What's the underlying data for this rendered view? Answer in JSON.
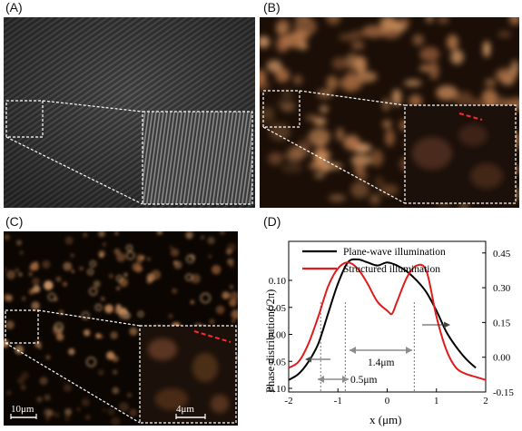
{
  "panels": {
    "a": {
      "label": "(A)"
    },
    "b": {
      "label": "(B)"
    },
    "c": {
      "label": "(C)",
      "scale_main": "10μm",
      "scale_inset": "4μm"
    },
    "d": {
      "label": "(D)"
    }
  },
  "colors": {
    "bg_gray": "#3a3a3a",
    "bg_dark": "#120a04",
    "copper": "#d08f5b",
    "plane_wave": "#000000",
    "structured": "#e11a1a",
    "guide": "#8c8c8c"
  },
  "chart_data": {
    "type": "line",
    "xlabel": "x (μm)",
    "ylabel": "Phase distribution(/2π)",
    "xlim": [
      -2,
      2
    ],
    "xticks": [
      "-2",
      "-1",
      "0",
      "1",
      "2"
    ],
    "left_ylim": [
      0.08,
      0.13
    ],
    "left_ytick_labels": [
      "0.10",
      "0.05",
      "0.00",
      "0.05",
      "0.10"
    ],
    "right_ylim": [
      -0.15,
      0.5
    ],
    "right_yticks": [
      "0.45",
      "0.30",
      "0.15",
      "0.00",
      "-0.15"
    ],
    "legend": {
      "placement": "top-right",
      "entries": [
        "Plane-wave illumination",
        "Structured illumination"
      ]
    },
    "series": [
      {
        "name": "Plane-wave illumination",
        "color": "#000000",
        "x": [
          -2.0,
          -1.8,
          -1.6,
          -1.4,
          -1.2,
          -1.0,
          -0.8,
          -0.6,
          -0.4,
          -0.2,
          0.0,
          0.2,
          0.4,
          0.6,
          0.8,
          1.0,
          1.2,
          1.4,
          1.6,
          1.8
        ],
        "y": [
          0.084,
          0.086,
          0.09,
          0.096,
          0.106,
          0.116,
          0.123,
          0.124,
          0.123,
          0.122,
          0.123,
          0.122,
          0.12,
          0.117,
          0.113,
          0.107,
          0.1,
          0.095,
          0.091,
          0.088
        ]
      },
      {
        "name": "Structured illumination",
        "color": "#e11a1a",
        "x": [
          -2.0,
          -1.8,
          -1.6,
          -1.4,
          -1.2,
          -1.0,
          -0.8,
          -0.6,
          -0.4,
          -0.2,
          0.0,
          0.1,
          0.2,
          0.4,
          0.6,
          0.8,
          1.0,
          1.2,
          1.4,
          1.6,
          1.8,
          2.0
        ],
        "y": [
          0.088,
          0.09,
          0.096,
          0.105,
          0.115,
          0.121,
          0.123,
          0.121,
          0.116,
          0.11,
          0.107,
          0.106,
          0.11,
          0.118,
          0.122,
          0.12,
          0.105,
          0.094,
          0.088,
          0.086,
          0.085,
          0.084
        ]
      }
    ],
    "annotations": [
      "1.4μm",
      "0.5μm"
    ]
  }
}
